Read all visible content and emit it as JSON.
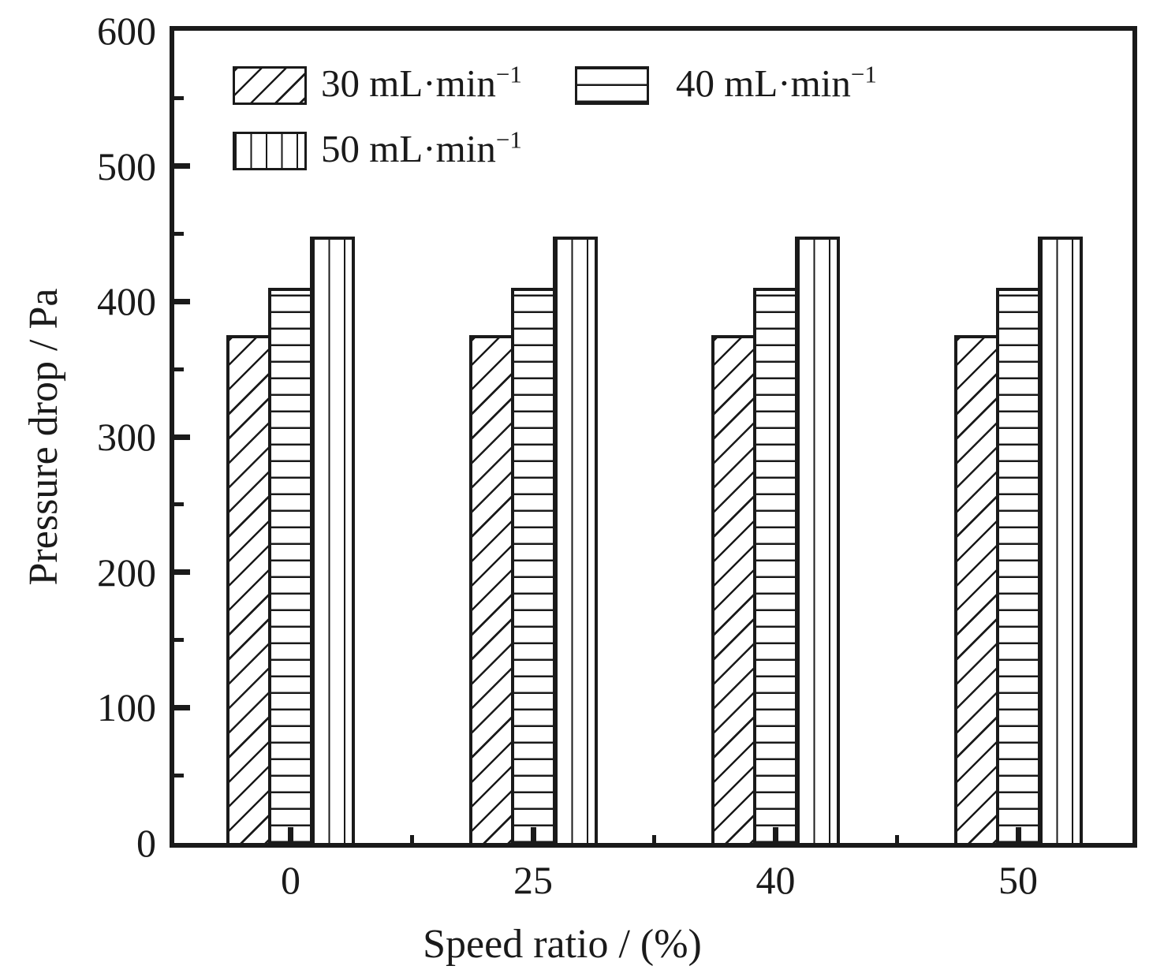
{
  "chart_data": {
    "type": "bar",
    "title": "",
    "xlabel": "Speed ratio / (%)",
    "ylabel": "Pressure drop / Pa",
    "categories": [
      "0",
      "25",
      "40",
      "50"
    ],
    "series": [
      {
        "name": "30 mL·min",
        "name_sup": "−1",
        "pattern": "diagonal-hatch",
        "values": [
          375,
          375,
          375,
          375
        ]
      },
      {
        "name": "40 mL·min",
        "name_sup": "−1",
        "pattern": "horizontal-lines",
        "values": [
          410,
          410,
          410,
          410
        ]
      },
      {
        "name": "50 mL·min",
        "name_sup": "−1",
        "pattern": "vertical-lines",
        "values": [
          448,
          448,
          448,
          448
        ]
      }
    ],
    "ylim": [
      0,
      600
    ],
    "ytick_major_step": 100,
    "ytick_minor_step": 50,
    "yticks": [
      "0",
      "100",
      "200",
      "300",
      "400",
      "500",
      "600"
    ],
    "legend_position": "top-left-inside",
    "grid": false,
    "bar_fill": "#ffffff",
    "line_color": "#1a1a1a"
  }
}
